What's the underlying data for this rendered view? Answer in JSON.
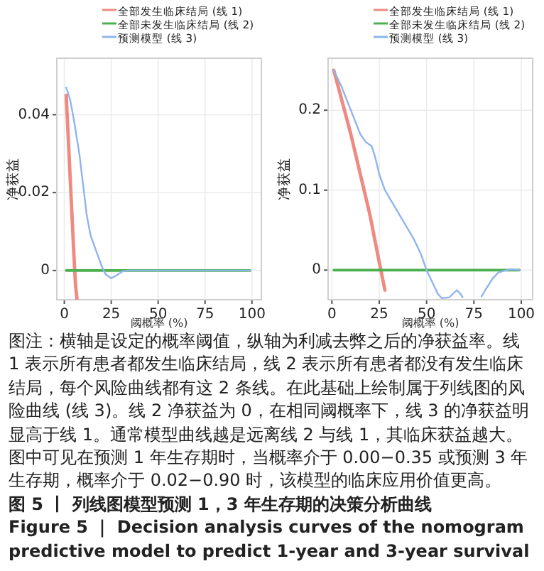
{
  "chart_data": [
    {
      "type": "line",
      "xlabel": "阈概率 (%)",
      "ylabel": "净获益",
      "xlim": [
        -4,
        105
      ],
      "ylim": [
        -0.0075,
        0.0545
      ],
      "xticks": [
        0,
        25,
        50,
        75,
        100
      ],
      "yticks": [
        0,
        0.02,
        0.04
      ],
      "grid": true,
      "legend": "top",
      "line_style": "solid",
      "marker": "none",
      "series": [
        {
          "name": "全部发生临床结局 (线 1)",
          "color": "#ee8a80",
          "x": [
            1,
            3,
            5,
            6,
            6.8
          ],
          "values": [
            0.045,
            0.025,
            0.005,
            -0.004,
            -0.0075
          ]
        },
        {
          "name": "全部未发生临床结局 (线 2)",
          "color": "#4cb050",
          "x": [
            1,
            99
          ],
          "values": [
            0,
            0
          ]
        },
        {
          "name": "预测模型 (线 3)",
          "color": "#8fb4ee",
          "x": [
            1,
            3,
            5,
            8,
            10,
            12,
            14,
            17,
            20,
            22,
            25,
            28,
            31,
            34,
            40,
            99
          ],
          "values": [
            0.047,
            0.044,
            0.039,
            0.03,
            0.022,
            0.014,
            0.009,
            0.005,
            0.001,
            -0.001,
            -0.002,
            -0.0012,
            -0.0002,
            0,
            0,
            0
          ]
        }
      ]
    },
    {
      "type": "line",
      "xlabel": "阈概率 (%)",
      "ylabel": "净获益",
      "xlim": [
        -2,
        106
      ],
      "ylim": [
        -0.037,
        0.265
      ],
      "xticks": [
        0,
        25,
        50,
        75,
        100
      ],
      "yticks": [
        0,
        0.1,
        0.2
      ],
      "grid": true,
      "legend": "top",
      "line_style": "solid",
      "marker": "none",
      "series": [
        {
          "name": "全部发生临床结局 (线 1)",
          "color": "#ee8a80",
          "x": [
            1,
            10,
            20,
            25,
            28
          ],
          "values": [
            0.25,
            0.17,
            0.07,
            0.01,
            -0.025
          ]
        },
        {
          "name": "全部未发生临床结局 (线 2)",
          "color": "#4cb050",
          "x": [
            1,
            99
          ],
          "values": [
            0,
            0
          ]
        },
        {
          "name": "预测模型 (线 3)",
          "color": "#8fb4ee",
          "x": [
            1,
            5,
            10,
            15,
            18,
            21,
            23,
            25,
            28,
            33,
            38,
            43,
            47,
            50,
            53,
            56,
            58,
            62,
            66,
            68,
            69,
            74,
            79,
            81,
            85,
            88,
            92,
            95,
            99
          ],
          "values": [
            0.25,
            0.23,
            0.2,
            0.17,
            0.16,
            0.155,
            0.14,
            0.12,
            0.1,
            0.08,
            0.06,
            0.04,
            0.02,
            0,
            -0.015,
            -0.03,
            -0.035,
            -0.034,
            -0.025,
            -0.03,
            -0.034,
            null,
            -0.033,
            -0.025,
            -0.01,
            -0.003,
            0,
            0.001,
            0
          ]
        }
      ],
      "annotations": [
        "图注：横轴是设定的概率阈值，纵轴为利减去弊之后的净获益率。线 1 表示所有患者都发生临床结局，线 2 表示所有患者都没有发生临床结局，每个风险曲线都有这 2 条线。在此基础上绘制属于列线图的风险曲线 (线 3)。线 2 净获益为 0，在相同阈概率下，线 3 的净获益明显高于线 1。通常模型曲线越是远离线 2 与线 1，其临床获益越大。图中可见在预测 1 年生存期时，当概率介于 0.00−0.35 或预测 3 年生存期，概率介于 0.02−0.90 时，该模型的临床应用价值更高。",
        "图 5 丨 列线图模型预测 1，3 年生存期的决策分析曲线",
        "Figure 5 ｜ Decision analysis curves of the nomogram predictive model to predict 1-year and 3-year survival"
      ]
    }
  ]
}
